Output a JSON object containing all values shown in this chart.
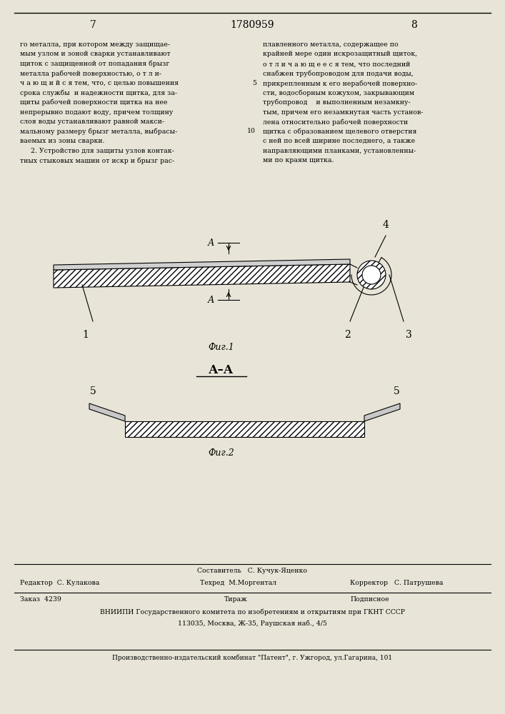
{
  "page_color": "#e8e5d8",
  "title_page_num_left": "7",
  "title_patent_num": "1780959",
  "title_page_num_right": "8",
  "col1_text": [
    "го металла, при котором между защищае-",
    "мым узлом и зоной сварки устанавливают",
    "щиток с защищенной от попадания брызг",
    "металла рабочей поверхностью, о т л и-",
    "ч а ю щ и й с я тем, что, с целью повышения",
    "срока службы  и надежности щитка, для за-",
    "щиты рабочей поверхности щитка на нее",
    "непрерывно подают воду, причем толщину",
    "слоя воды устанавливают равной макси-",
    "мальному размеру брызг металла, выбрасы-",
    "ваемых из зоны сварки.",
    "     2. Устройство для защиты узлов контак-",
    "тных стыковых машин от искр и брызг рас-"
  ],
  "col2_text": [
    "плавленного металла, содержащее по",
    "крайней мере один искрозащитный щиток,",
    "о т л и ч а ю щ е е с я тем, что последний",
    "снабжен трубопроводом для подачи воды,",
    "прикрепленным к его нерабочей поверхно-",
    "сти, водосборным кожухом, закрывающим",
    "трубопровод    и выполненным незамкну-",
    "тым, причем его незамкнутая часть установ-",
    "лена относительно рабочей поверхности",
    "щитка с образованием щелевого отверстия",
    "с ней по всей ширине последнего, а также",
    "направляющими планками, установленны-",
    "ми по краям щитка."
  ],
  "fig1_label": "Фиг.1",
  "fig2_label": "Фиг.2",
  "aa_label": "А–А",
  "footer_line1_left": "Редактор  С. Кулакова",
  "footer_sostavitel": "Составитель   С. Кучук-Яценко",
  "footer_tekhred": "Техред  М.Моргентал",
  "footer_korrektor": "Корректор   С. Патрушева",
  "footer_zakaz": "Заказ  4239",
  "footer_tirazh": "Тираж",
  "footer_podpisnoe": "Подписное",
  "footer_vniipи": "ВНИИПИ Государственного комитета по изобретениям и открытиям при ГКНТ СССР",
  "footer_address": "113035, Москва, Ж-35, Раушская наб., 4/5",
  "footer_kombinat": "Производственно-издательский комбинат \"Патент\", г. Ужгород, ул.Гагарина, 101"
}
